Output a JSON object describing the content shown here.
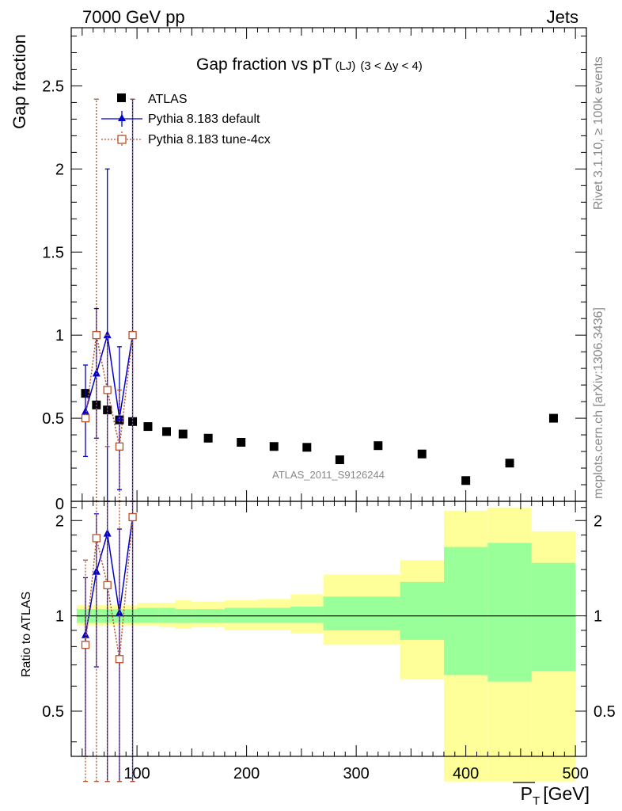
{
  "header": {
    "energy_label": "7000 GeV pp",
    "process_label": "Jets"
  },
  "side_labels": {
    "rivet": "Rivet 3.1.10, ≥ 100k events",
    "mcplots": "mcplots.cern.ch [arXiv:1306.3436]"
  },
  "chart_data": [
    {
      "type": "scatter",
      "title": "Gap fraction vs pT",
      "title_sub": "(LJ)",
      "title_range": "(3 < Δy < 4)",
      "ylabel": "Gap fraction",
      "xlim": [
        40,
        510
      ],
      "ylim": [
        0,
        2.85
      ],
      "yticks": [
        0.5,
        1,
        1.5,
        2,
        2.5
      ],
      "ytick_labels": [
        "0.5",
        "1",
        "1.5",
        "2",
        "2.5"
      ],
      "bottom_tick_label": "0",
      "watermark": "ATLAS_2011_S9126244",
      "legend": [
        "ATLAS",
        "Pythia 8.183 default",
        "Pythia 8.183 tune-4cx"
      ],
      "series": [
        {
          "name": "ATLAS",
          "x": [
            53,
            63,
            73,
            84,
            96,
            110,
            127,
            142,
            165,
            195,
            225,
            255,
            285,
            320,
            360,
            400,
            440,
            480
          ],
          "y": [
            0.65,
            0.58,
            0.55,
            0.49,
            0.48,
            0.45,
            0.42,
            0.405,
            0.38,
            0.355,
            0.33,
            0.325,
            0.25,
            0.335,
            0.285,
            0.125,
            0.23,
            0.5
          ]
        },
        {
          "name": "Pythia 8.183 default",
          "x": [
            53,
            63,
            73,
            84,
            96
          ],
          "y": [
            0.54,
            0.77,
            1.0,
            0.5,
            1.0
          ],
          "err_lo": [
            0.27,
            0.38,
            0,
            0.07,
            0
          ],
          "err_hi": [
            0.82,
            1.16,
            2.0,
            0.93,
            2.42
          ]
        },
        {
          "name": "Pythia 8.183 tune-4cx",
          "x": [
            53,
            63,
            73,
            84,
            96
          ],
          "y": [
            0.5,
            1.0,
            0.67,
            0.33,
            1.0
          ],
          "err_lo": [
            0.5,
            0,
            0.33,
            0,
            0
          ],
          "err_hi": [
            0.5,
            2.42,
            1.0,
            0.67,
            2.42
          ]
        }
      ]
    },
    {
      "type": "ratio",
      "ylabel": "Ratio to ATLAS",
      "xlabel": "P̅T [GeV]",
      "xlabel_main": "P",
      "xlabel_sub": "T",
      "xlabel_unit": "[GeV]",
      "xlim": [
        40,
        510
      ],
      "ylim": [
        0.36,
        2.3
      ],
      "xticks": [
        100,
        200,
        300,
        400,
        500
      ],
      "xtick_labels": [
        "100",
        "200",
        "300",
        "400",
        "500"
      ],
      "yticks": [
        0.5,
        1,
        2
      ],
      "ytick_labels": [
        "0.5",
        "1",
        "2"
      ],
      "bands": {
        "edges": [
          45,
          60,
          70,
          80,
          90,
          100,
          120,
          135,
          150,
          180,
          210,
          240,
          270,
          340,
          380,
          420,
          460,
          500
        ],
        "green_lo": [
          0.95,
          0.95,
          0.95,
          0.95,
          0.95,
          0.95,
          0.95,
          0.95,
          0.95,
          0.95,
          0.95,
          0.95,
          0.9,
          0.84,
          0.65,
          0.62,
          0.67
        ],
        "green_hi": [
          1.05,
          1.05,
          1.05,
          1.05,
          1.05,
          1.06,
          1.06,
          1.05,
          1.05,
          1.06,
          1.06,
          1.07,
          1.15,
          1.28,
          1.65,
          1.7,
          1.47
        ],
        "yellow_lo": [
          0.93,
          0.93,
          0.93,
          0.93,
          0.93,
          0.93,
          0.92,
          0.91,
          0.92,
          0.9,
          0.9,
          0.88,
          0.81,
          0.63,
          0.3,
          0.3,
          0.3
        ],
        "yellow_hi": [
          1.08,
          1.08,
          1.08,
          1.08,
          1.08,
          1.1,
          1.1,
          1.12,
          1.11,
          1.12,
          1.13,
          1.17,
          1.35,
          1.5,
          2.15,
          2.2,
          1.85
        ]
      },
      "series": [
        {
          "name": "Pythia 8.183 default",
          "x": [
            53,
            63,
            73,
            84,
            96
          ],
          "y": [
            0.87,
            1.38,
            1.82,
            1.02,
            2.05
          ],
          "err_lo": [
            0.36,
            0.69,
            0.3,
            0.3,
            0.3
          ],
          "err_hi": [
            1.32,
            2.1,
            2.3,
            1.88,
            2.3
          ]
        },
        {
          "name": "Pythia 8.183 tune-4cx",
          "x": [
            53,
            63,
            73,
            84,
            96
          ],
          "y": [
            0.81,
            1.76,
            1.25,
            0.73,
            2.05
          ],
          "err_lo": [
            0.3,
            0.3,
            0.3,
            0.3,
            0.3
          ],
          "err_hi": [
            1.5,
            2.3,
            2.3,
            2.3,
            2.3
          ]
        }
      ]
    }
  ]
}
